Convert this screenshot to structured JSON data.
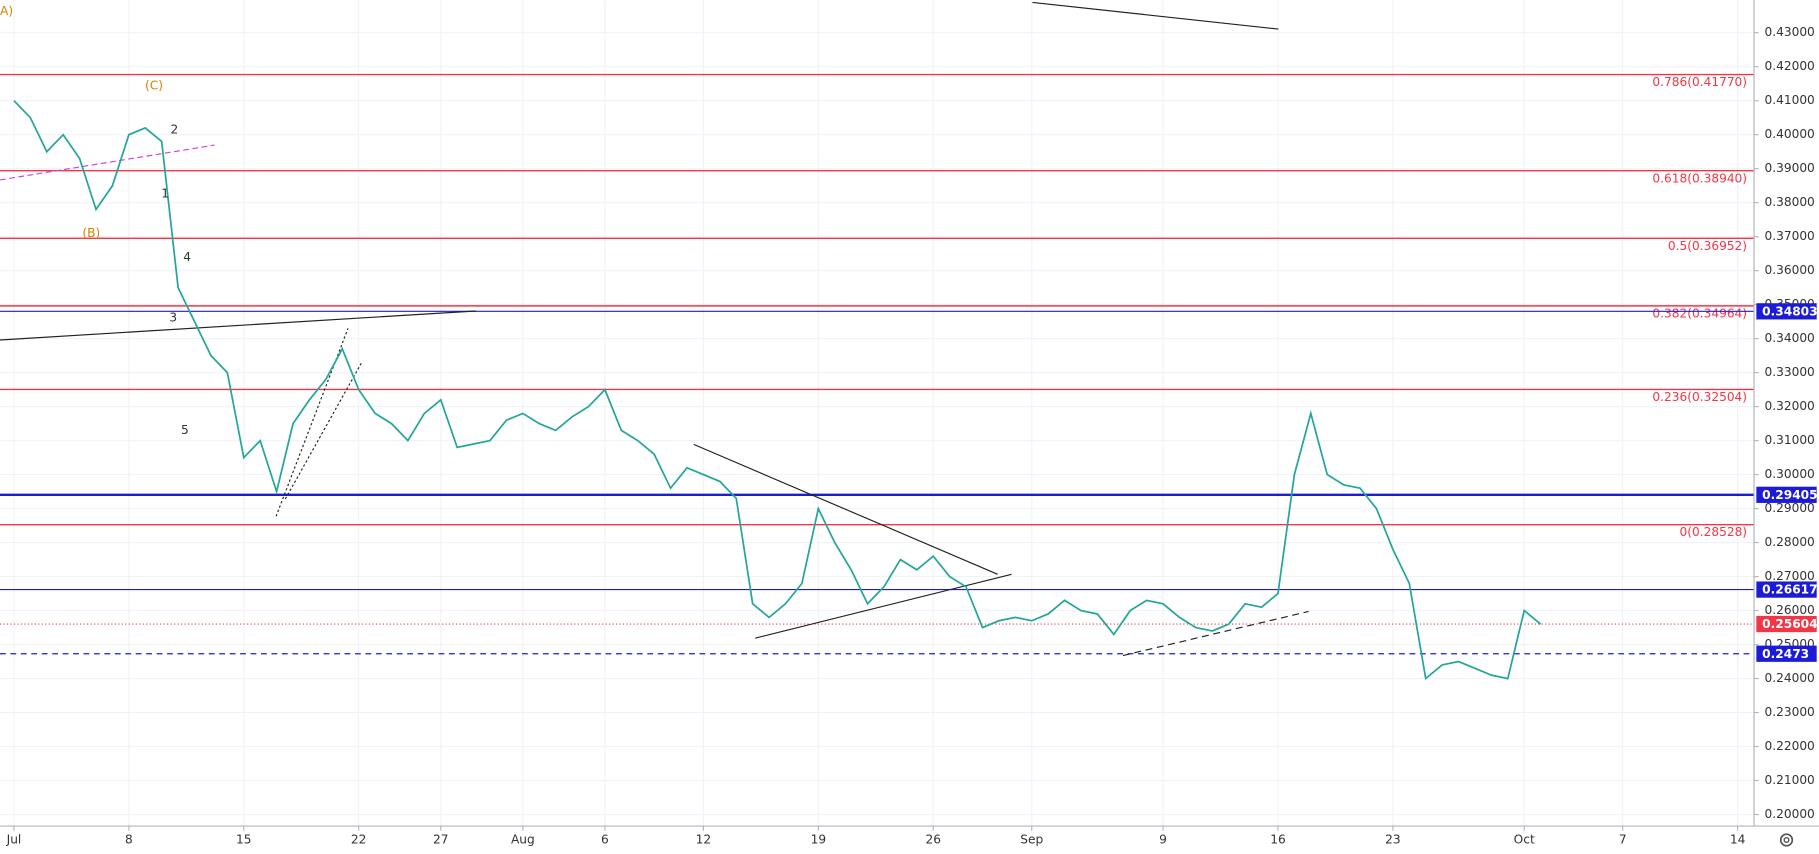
{
  "chart_data": {
    "type": "line",
    "color": "#26a69a",
    "x": [
      0,
      1,
      2,
      3,
      4,
      5,
      6,
      7,
      8,
      9,
      10,
      11,
      12,
      13,
      14,
      15,
      16,
      17,
      18,
      19,
      20,
      21,
      22,
      23,
      24,
      25,
      26,
      27,
      28,
      29,
      30,
      31,
      32,
      33,
      34,
      35,
      36,
      37,
      38,
      39,
      40,
      41,
      42,
      43,
      44,
      45,
      46,
      47,
      48,
      49,
      50,
      51,
      52,
      53,
      54,
      55,
      56,
      57,
      58,
      59,
      60,
      61,
      62,
      63,
      64,
      65,
      66,
      67,
      68,
      69,
      70,
      71,
      72,
      73,
      74,
      75,
      76,
      77,
      78,
      79,
      80,
      81,
      82,
      83,
      84,
      85,
      86,
      87,
      88,
      89,
      90,
      91,
      92,
      93
    ],
    "values": [
      0.41,
      0.405,
      0.395,
      0.4,
      0.393,
      0.378,
      0.385,
      0.4,
      0.402,
      0.398,
      0.355,
      0.345,
      0.335,
      0.33,
      0.305,
      0.31,
      0.295,
      0.315,
      0.322,
      0.328,
      0.337,
      0.325,
      0.318,
      0.315,
      0.31,
      0.318,
      0.322,
      0.308,
      0.309,
      0.31,
      0.316,
      0.318,
      0.315,
      0.313,
      0.317,
      0.32,
      0.325,
      0.313,
      0.31,
      0.306,
      0.296,
      0.302,
      0.3,
      0.298,
      0.293,
      0.262,
      0.258,
      0.262,
      0.268,
      0.29,
      0.28,
      0.272,
      0.262,
      0.267,
      0.275,
      0.272,
      0.276,
      0.27,
      0.267,
      0.255,
      0.257,
      0.258,
      0.257,
      0.259,
      0.263,
      0.26,
      0.259,
      0.253,
      0.26,
      0.263,
      0.262,
      0.258,
      0.255,
      0.254,
      0.256,
      0.262,
      0.261,
      0.265,
      0.3,
      0.318,
      0.3,
      0.297,
      0.296,
      0.29,
      0.278,
      0.268,
      0.24,
      0.244,
      0.245,
      0.243,
      0.241,
      0.24,
      0.26,
      0.256
    ],
    "xlim": [
      -0.85,
      106
    ],
    "xticks": [
      {
        "value": 0,
        "label": "Jul"
      },
      {
        "value": 7,
        "label": "8"
      },
      {
        "value": 14,
        "label": "15"
      },
      {
        "value": 21,
        "label": "22"
      },
      {
        "value": 26,
        "label": "27"
      },
      {
        "value": 31,
        "label": "Aug"
      },
      {
        "value": 36,
        "label": "6"
      },
      {
        "value": 42,
        "label": "12"
      },
      {
        "value": 49,
        "label": "19"
      },
      {
        "value": 56,
        "label": "26"
      },
      {
        "value": 62,
        "label": "Sep"
      },
      {
        "value": 70,
        "label": "9"
      },
      {
        "value": 77,
        "label": "16"
      },
      {
        "value": 84,
        "label": "23"
      },
      {
        "value": 92,
        "label": "Oct"
      },
      {
        "value": 98,
        "label": "7"
      },
      {
        "value": 105,
        "label": "14"
      }
    ],
    "ylim": [
      0.1966,
      0.4396
    ],
    "yticks": [
      {
        "value": 0.2,
        "label": "0.20000"
      },
      {
        "value": 0.21,
        "label": "0.21000"
      },
      {
        "value": 0.22,
        "label": "0.22000"
      },
      {
        "value": 0.23,
        "label": "0.23000"
      },
      {
        "value": 0.24,
        "label": "0.24000"
      },
      {
        "value": 0.25,
        "label": "0.25000"
      },
      {
        "value": 0.26,
        "label": "0.26000"
      },
      {
        "value": 0.27,
        "label": "0.27000"
      },
      {
        "value": 0.28,
        "label": "0.28000"
      },
      {
        "value": 0.29,
        "label": "0.29000"
      },
      {
        "value": 0.3,
        "label": "0.30000"
      },
      {
        "value": 0.31,
        "label": "0.31000"
      },
      {
        "value": 0.32,
        "label": "0.32000"
      },
      {
        "value": 0.33,
        "label": "0.33000"
      },
      {
        "value": 0.34,
        "label": "0.34000"
      },
      {
        "value": 0.35,
        "label": "0.35000"
      },
      {
        "value": 0.36,
        "label": "0.36000"
      },
      {
        "value": 0.37,
        "label": "0.37000"
      },
      {
        "value": 0.38,
        "label": "0.38000"
      },
      {
        "value": 0.39,
        "label": "0.39000"
      },
      {
        "value": 0.4,
        "label": "0.40000"
      },
      {
        "value": 0.41,
        "label": "0.41000"
      },
      {
        "value": 0.42,
        "label": "0.42000"
      },
      {
        "value": 0.43,
        "label": "0.43000"
      }
    ],
    "grid": true,
    "fib_levels": [
      {
        "value": 0.4177,
        "label": "0.786(0.41770)"
      },
      {
        "value": 0.3894,
        "label": "0.618(0.38940)"
      },
      {
        "value": 0.36952,
        "label": "0.5(0.36952)"
      },
      {
        "value": 0.34964,
        "label": "0.382(0.34964)"
      },
      {
        "value": 0.32504,
        "label": "0.236(0.32504)"
      },
      {
        "value": 0.28528,
        "label": "0(0.28528)"
      }
    ],
    "fib_color": "#f23645",
    "price_levels": [
      {
        "value": 0.34803,
        "color": "#1c1cd8",
        "style": "solid",
        "width": 1
      },
      {
        "value": 0.29405,
        "color": "#1c1cd8",
        "style": "solid",
        "width": 2
      },
      {
        "value": 0.26617,
        "color": "#1c1cd8",
        "style": "solid",
        "width": 1
      },
      {
        "value": 0.25604,
        "color": "#f23645",
        "style": "dotted",
        "width": 1
      },
      {
        "value": 0.2473,
        "color": "#1c1cd8",
        "style": "dashed",
        "width": 1
      }
    ],
    "annotations": [
      "A)",
      "(C)",
      "(B)",
      "1",
      "2",
      "3",
      "4",
      "5"
    ]
  }
}
